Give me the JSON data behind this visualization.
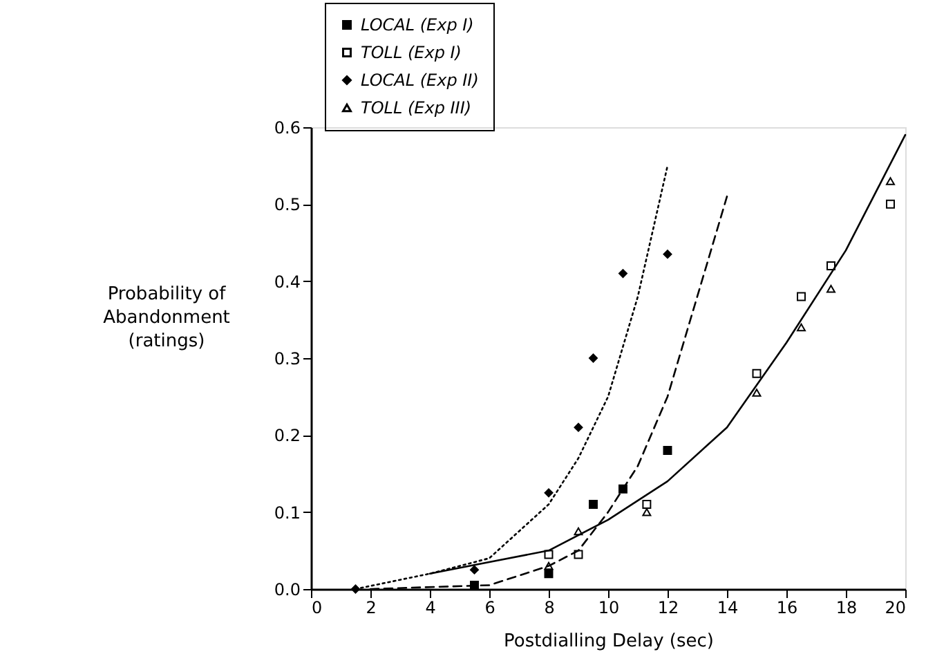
{
  "chart_data": {
    "type": "scatter",
    "xlabel": "Postdialling Delay (sec)",
    "ylabel": "Probability of\nAbandonment\n(ratings)",
    "series": [
      {
        "name": "LOCAL (Exp I)",
        "color": "#000000",
        "marker": "square",
        "x": [
          5.5,
          8,
          9.5,
          10.5,
          12
        ],
        "values": [
          0.005,
          0.02,
          0.11,
          0.13,
          0.18
        ]
      },
      {
        "name": "TOLL (Exp I)",
        "color": "#ffffff",
        "marker": "square",
        "x": [
          8,
          9,
          11.3,
          15,
          16.5,
          17.5,
          19.5
        ],
        "values": [
          0.045,
          0.045,
          0.11,
          0.28,
          0.38,
          0.42,
          0.5
        ]
      },
      {
        "name": "LOCAL (Exp II)",
        "color": "#000000",
        "marker": "diamond",
        "x": [
          1.5,
          5.5,
          8,
          9,
          9.5,
          10.5,
          12
        ],
        "values": [
          0,
          0.025,
          0.125,
          0.21,
          0.3,
          0.41,
          0.435
        ]
      },
      {
        "name": "TOLL (Exp III)",
        "color": "#ffffff",
        "marker": "triangle",
        "x": [
          8,
          9,
          11.3,
          15,
          16.5,
          17.5,
          19.5
        ],
        "values": [
          0.03,
          0.075,
          0.1,
          0.255,
          0.34,
          0.39,
          0.53
        ]
      },
      {
        "type": "line",
        "color": "#000000",
        "line_style": "dotted",
        "x": [
          1.5,
          4,
          6,
          8,
          9,
          10,
          11,
          12
        ],
        "values": [
          0,
          0.02,
          0.04,
          0.11,
          0.17,
          0.25,
          0.38,
          0.55
        ]
      },
      {
        "type": "line",
        "color": "#000000",
        "line_style": "dashed",
        "x": [
          2,
          6,
          8,
          9,
          10,
          11,
          12,
          13,
          14
        ],
        "values": [
          0,
          0.005,
          0.03,
          0.05,
          0.1,
          0.16,
          0.25,
          0.38,
          0.51
        ]
      },
      {
        "type": "line",
        "color": "#000000",
        "line_style": "solid",
        "x": [
          4,
          6,
          8,
          10,
          12,
          14,
          16,
          18,
          20
        ],
        "values": [
          0.02,
          0.035,
          0.05,
          0.09,
          0.14,
          0.21,
          0.32,
          0.44,
          0.59
        ]
      }
    ],
    "xlim": [
      0,
      20
    ],
    "ylim": [
      0,
      0.6
    ],
    "xticks": [
      0,
      2,
      4,
      6,
      8,
      10,
      12,
      14,
      16,
      18,
      20
    ],
    "yticks": [
      {
        "value": 0,
        "label": "0.0"
      },
      {
        "value": 0.1,
        "label": "0.1"
      },
      {
        "value": 0.2,
        "label": "0.2"
      },
      {
        "value": 0.3,
        "label": "0.3"
      },
      {
        "value": 0.4,
        "label": "0.4"
      },
      {
        "value": 0.5,
        "label": "0.5"
      },
      {
        "value": 0.6,
        "label": "0.6"
      }
    ],
    "grid": false,
    "legend": "top"
  }
}
